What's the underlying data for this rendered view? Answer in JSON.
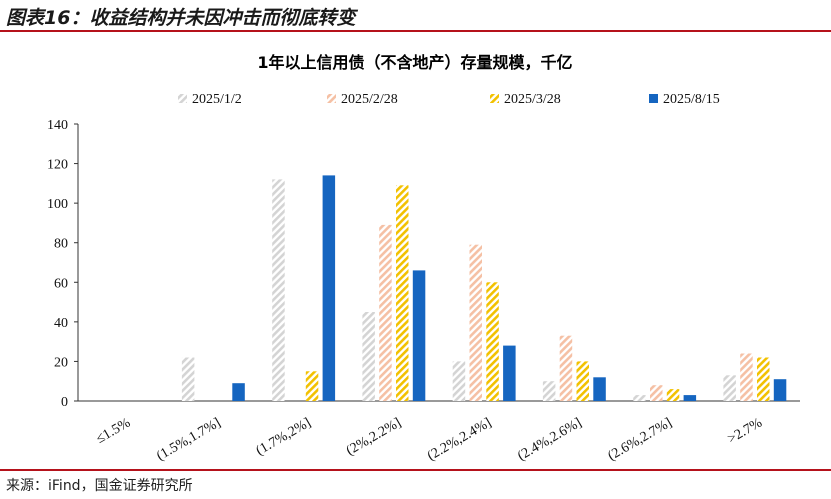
{
  "figure_title": "图表16：收益结构并未因冲击而彻底转变",
  "source_note": "来源：iFind，国金证券研究所",
  "chart_data": {
    "type": "bar",
    "title": "1年以上信用债（不含地产）存量规模，千亿",
    "categories": [
      "≤1.5%",
      "(1.5%,1.7%]",
      "(1.7%,2%]",
      "(2%,2.2%]",
      "(2.2%,2.4%]",
      "(2.4%,2.6%]",
      "(2.6%,2.7%]",
      ">2.7%"
    ],
    "series": [
      {
        "name": "2025/1/2",
        "values": [
          0,
          22,
          112,
          45,
          20,
          10,
          3,
          13
        ],
        "color": "#d4d4d4",
        "pattern": "hatch"
      },
      {
        "name": "2025/2/28",
        "values": [
          0,
          0,
          0,
          89,
          79,
          33,
          8,
          24
        ],
        "color": "#f5c0a4",
        "pattern": "hatch"
      },
      {
        "name": "2025/3/28",
        "values": [
          0,
          0,
          15,
          109,
          60,
          20,
          6,
          22
        ],
        "color": "#f2c100",
        "pattern": "hatch"
      },
      {
        "name": "2025/8/15",
        "values": [
          0,
          9,
          114,
          66,
          28,
          12,
          3,
          11
        ],
        "color": "#1565c0",
        "pattern": "solid"
      }
    ],
    "ylim": [
      0,
      140
    ],
    "yticks": [
      0,
      20,
      40,
      60,
      80,
      100,
      120,
      140
    ],
    "grid": false,
    "legend_position": "top"
  }
}
